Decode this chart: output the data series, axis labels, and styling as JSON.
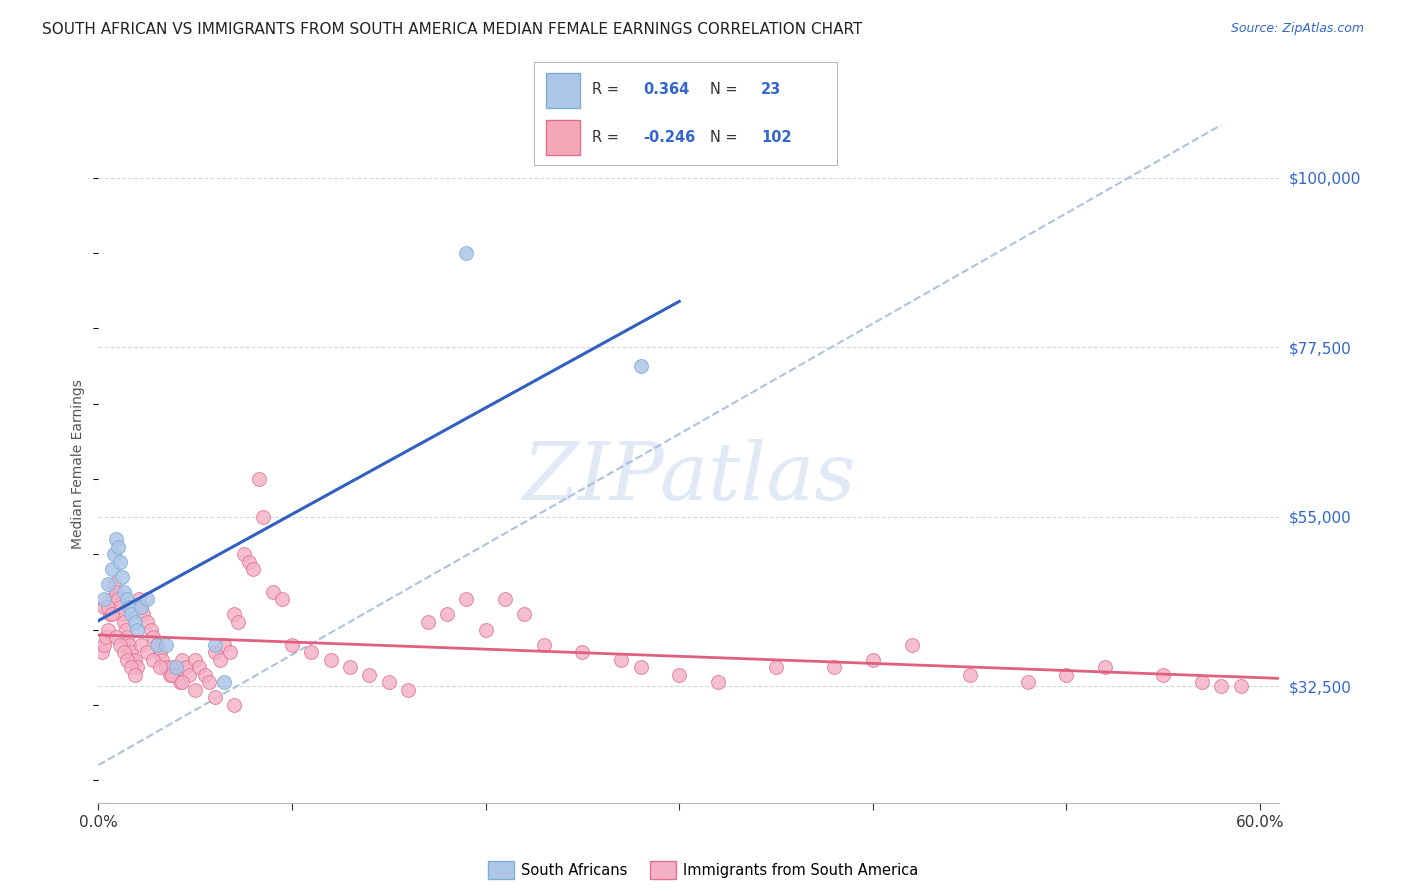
{
  "title": "SOUTH AFRICAN VS IMMIGRANTS FROM SOUTH AMERICA MEDIAN FEMALE EARNINGS CORRELATION CHART",
  "source": "Source: ZipAtlas.com",
  "ylabel": "Median Female Earnings",
  "yticks": [
    32500,
    55000,
    77500,
    100000
  ],
  "ytick_labels": [
    "$32,500",
    "$55,000",
    "$77,500",
    "$100,000"
  ],
  "ymin": 17000,
  "ymax": 107000,
  "xmin": 0.0,
  "xmax": 0.61,
  "bg_color": "#ffffff",
  "grid_color": "#d0d8e8",
  "watermark_text": "ZIPatlas",
  "r1": 0.364,
  "n1": 23,
  "r2": -0.246,
  "n2": 102,
  "legend_color1": "#aec6e8",
  "legend_color2": "#f4a7b9",
  "scatter_color_sa": "#aec6e8",
  "scatter_edge_sa": "#7bafd4",
  "scatter_color_sim": "#f4b0c5",
  "scatter_edge_sim": "#e07090",
  "line_color_sa": "#3060c0",
  "line_color_sim": "#e06080",
  "dash_color": "#a0b8d8",
  "marker_size": 100,
  "south_african_x": [
    0.003,
    0.005,
    0.007,
    0.008,
    0.009,
    0.01,
    0.011,
    0.012,
    0.013,
    0.015,
    0.016,
    0.017,
    0.019,
    0.02,
    0.022,
    0.025,
    0.03,
    0.035,
    0.04,
    0.06,
    0.065,
    0.19,
    0.28
  ],
  "south_african_y": [
    44000,
    46000,
    48000,
    50000,
    52000,
    51000,
    49000,
    47000,
    45000,
    44000,
    43000,
    42000,
    41000,
    40000,
    43000,
    44000,
    38000,
    38000,
    35000,
    38000,
    33000,
    90000,
    75000
  ],
  "south_american_x": [
    0.002,
    0.003,
    0.004,
    0.005,
    0.006,
    0.007,
    0.008,
    0.009,
    0.01,
    0.011,
    0.012,
    0.013,
    0.014,
    0.015,
    0.016,
    0.017,
    0.018,
    0.019,
    0.02,
    0.021,
    0.022,
    0.023,
    0.025,
    0.027,
    0.028,
    0.03,
    0.032,
    0.033,
    0.035,
    0.037,
    0.038,
    0.04,
    0.042,
    0.043,
    0.045,
    0.047,
    0.05,
    0.052,
    0.055,
    0.057,
    0.06,
    0.063,
    0.065,
    0.068,
    0.07,
    0.072,
    0.075,
    0.078,
    0.08,
    0.083,
    0.085,
    0.09,
    0.095,
    0.1,
    0.11,
    0.12,
    0.13,
    0.14,
    0.15,
    0.16,
    0.17,
    0.18,
    0.19,
    0.2,
    0.21,
    0.22,
    0.23,
    0.25,
    0.27,
    0.28,
    0.3,
    0.32,
    0.35,
    0.38,
    0.4,
    0.42,
    0.45,
    0.48,
    0.5,
    0.52,
    0.55,
    0.57,
    0.58,
    0.59,
    0.003,
    0.005,
    0.007,
    0.009,
    0.011,
    0.013,
    0.015,
    0.017,
    0.019,
    0.022,
    0.025,
    0.028,
    0.032,
    0.038,
    0.043,
    0.05,
    0.06,
    0.07
  ],
  "south_american_y": [
    37000,
    38000,
    39000,
    40000,
    42000,
    44000,
    46000,
    45000,
    44000,
    43000,
    42000,
    41000,
    40000,
    39000,
    38000,
    37000,
    36000,
    36000,
    35000,
    44000,
    43000,
    42000,
    41000,
    40000,
    39000,
    38000,
    37000,
    36000,
    35000,
    34000,
    35000,
    34000,
    33000,
    36000,
    35000,
    34000,
    36000,
    35000,
    34000,
    33000,
    37000,
    36000,
    38000,
    37000,
    42000,
    41000,
    50000,
    49000,
    48000,
    60000,
    55000,
    45000,
    44000,
    38000,
    37000,
    36000,
    35000,
    34000,
    33000,
    32000,
    41000,
    42000,
    44000,
    40000,
    44000,
    42000,
    38000,
    37000,
    36000,
    35000,
    34000,
    33000,
    35000,
    35000,
    36000,
    38000,
    34000,
    33000,
    34000,
    35000,
    34000,
    33000,
    32500,
    32500,
    43000,
    43000,
    42000,
    39000,
    38000,
    37000,
    36000,
    35000,
    34000,
    38000,
    37000,
    36000,
    35000,
    34000,
    33000,
    32000,
    31000,
    30000
  ]
}
